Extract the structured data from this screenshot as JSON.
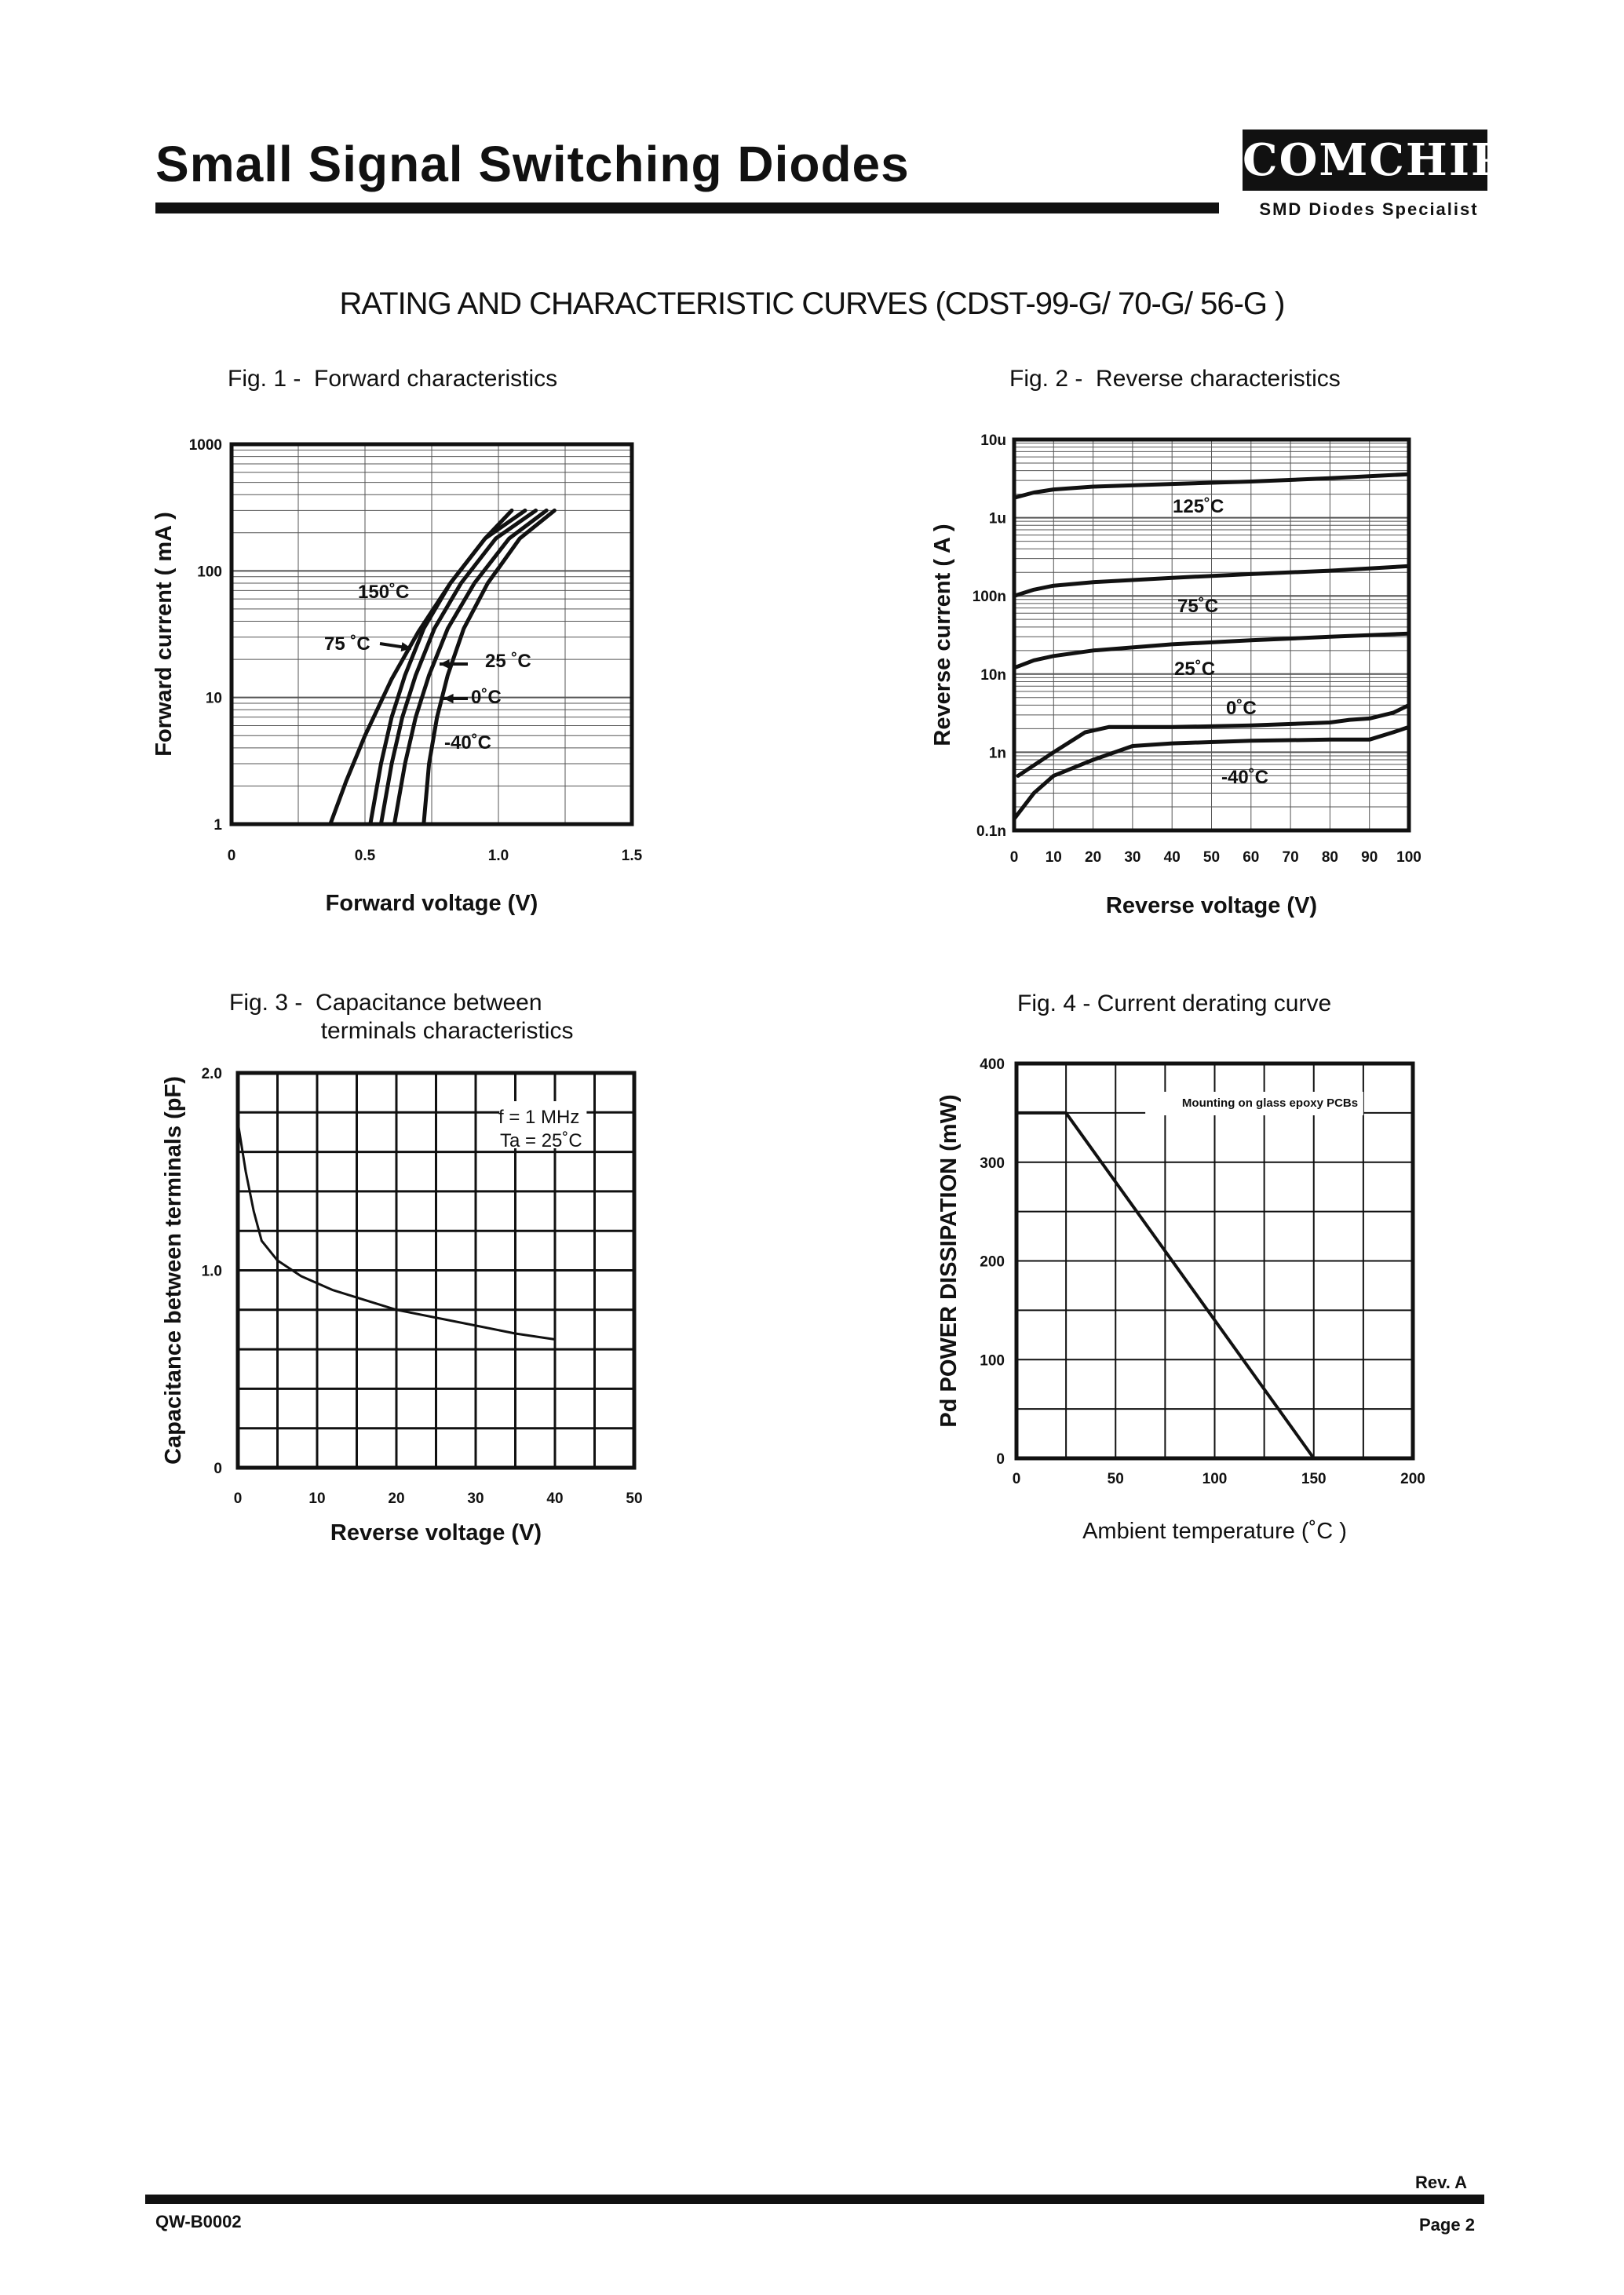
{
  "header": {
    "title": "Small Signal Switching Diodes",
    "logo_text": "COMCHIP",
    "logo_tagline": "SMD Diodes Specialist"
  },
  "section_title": "RATING AND CHARACTERISTIC CURVES (CDST-99-G/ 70-G/ 56-G )",
  "footer": {
    "doc_code": "QW-B0002",
    "revision": "Rev. A",
    "page": "Page 2"
  },
  "chart_data": [
    {
      "id": "fig1",
      "type": "line",
      "title": "Fig. 1 -  Forward characteristics",
      "xlabel": "Forward voltage (V)",
      "ylabel": "Forward current ( mA )",
      "xlim": [
        0,
        1.5
      ],
      "ylim": [
        1,
        1000
      ],
      "y_scale": "log",
      "x_tick_labels": [
        "0",
        "0.5",
        "1.0",
        "1.5"
      ],
      "y_tick_labels": [
        "1",
        "10",
        "100",
        "1000"
      ],
      "series": [
        {
          "name": "150°C",
          "label": "150˚C",
          "x": [
            0.37,
            0.43,
            0.5,
            0.6,
            0.7,
            0.82,
            0.95,
            1.05
          ],
          "y": [
            1,
            2.2,
            5,
            14,
            33,
            80,
            180,
            300
          ]
        },
        {
          "name": "75°C",
          "label": "75 ˚C",
          "x": [
            0.52,
            0.56,
            0.6,
            0.65,
            0.72,
            0.82,
            0.95,
            1.1
          ],
          "y": [
            1,
            3,
            7,
            15,
            35,
            80,
            180,
            300
          ]
        },
        {
          "name": "25°C",
          "label": "25 ˚C",
          "x": [
            0.56,
            0.6,
            0.64,
            0.69,
            0.76,
            0.86,
            0.99,
            1.14
          ],
          "y": [
            1,
            3,
            7,
            15,
            35,
            80,
            180,
            300
          ]
        },
        {
          "name": "0°C",
          "label": "0˚C",
          "x": [
            0.61,
            0.65,
            0.69,
            0.74,
            0.81,
            0.91,
            1.04,
            1.18
          ],
          "y": [
            1,
            3,
            7,
            15,
            35,
            80,
            180,
            300
          ]
        },
        {
          "name": "-40°C",
          "label": "-40˚C",
          "x": [
            0.72,
            0.74,
            0.77,
            0.81,
            0.87,
            0.96,
            1.08,
            1.21
          ],
          "y": [
            1,
            3,
            7,
            15,
            35,
            80,
            180,
            300
          ]
        }
      ]
    },
    {
      "id": "fig2",
      "type": "line",
      "title": "Fig. 2 -  Reverse characteristics",
      "xlabel": "Reverse voltage (V)",
      "ylabel": "Reverse  current ( A )",
      "xlim": [
        0,
        100
      ],
      "ylim": [
        1e-10,
        1e-05
      ],
      "y_scale": "log",
      "x_tick_labels": [
        "0",
        "10",
        "20",
        "30",
        "40",
        "50",
        "60",
        "70",
        "80",
        "90",
        "100"
      ],
      "y_tick_labels": [
        "0.1n",
        "1n",
        "10n",
        "100n",
        "1u",
        "10u"
      ],
      "series": [
        {
          "name": "125°C",
          "label": "125˚C",
          "x": [
            0,
            5,
            10,
            20,
            40,
            60,
            80,
            100
          ],
          "y": [
            1.8e-06,
            2.1e-06,
            2.3e-06,
            2.5e-06,
            2.7e-06,
            2.9e-06,
            3.2e-06,
            3.6e-06
          ]
        },
        {
          "name": "75°C",
          "label": "75˚C",
          "x": [
            0,
            5,
            10,
            20,
            40,
            60,
            80,
            100
          ],
          "y": [
            1e-07,
            1.2e-07,
            1.35e-07,
            1.5e-07,
            1.7e-07,
            1.9e-07,
            2.1e-07,
            2.4e-07
          ]
        },
        {
          "name": "25°C",
          "label": "25˚C",
          "x": [
            0,
            5,
            10,
            20,
            40,
            60,
            80,
            100
          ],
          "y": [
            1.2e-08,
            1.5e-08,
            1.7e-08,
            2e-08,
            2.4e-08,
            2.7e-08,
            3e-08,
            3.3e-08
          ]
        },
        {
          "name": "0°C",
          "label": "0˚C",
          "x": [
            1,
            10,
            18,
            24,
            40,
            60,
            80,
            85,
            90,
            96,
            100
          ],
          "y": [
            5e-10,
            1e-09,
            1.8e-09,
            2.1e-09,
            2.1e-09,
            2.2e-09,
            2.4e-09,
            2.6e-09,
            2.7e-09,
            3.2e-09,
            4e-09
          ]
        },
        {
          "name": "-40°C",
          "label": "-40˚C",
          "x": [
            0,
            5,
            10,
            20,
            30,
            40,
            60,
            80,
            90,
            96,
            100
          ],
          "y": [
            1.4e-10,
            3e-10,
            5e-10,
            8e-10,
            1.2e-09,
            1.3e-09,
            1.4e-09,
            1.45e-09,
            1.45e-09,
            1.8e-09,
            2.1e-09
          ]
        }
      ]
    },
    {
      "id": "fig3",
      "type": "line",
      "title": "Fig. 3 -  Capacitance between\n              terminals characteristics",
      "xlabel": "Reverse voltage (V)",
      "ylabel": "Capacitance between terminals (pF)",
      "xlim": [
        0,
        50
      ],
      "ylim": [
        0,
        2.0
      ],
      "x_tick_labels": [
        "0",
        "10",
        "20",
        "30",
        "40",
        "50"
      ],
      "y_tick_labels": [
        "0",
        "1.0",
        "2.0"
      ],
      "annotations": [
        "f = 1 MHz",
        "Ta = 25˚C"
      ],
      "series": [
        {
          "name": "Ta = 25°C",
          "x": [
            0,
            1,
            2,
            3,
            5,
            8,
            12,
            20,
            30,
            35,
            40
          ],
          "y": [
            1.75,
            1.5,
            1.3,
            1.15,
            1.05,
            0.97,
            0.9,
            0.8,
            0.72,
            0.68,
            0.65
          ]
        }
      ]
    },
    {
      "id": "fig4",
      "type": "line",
      "title": "Fig. 4 - Current derating curve",
      "xlabel": "Ambient temperature (˚C )",
      "ylabel": "Pd POWER DISSIPATION (mW)",
      "xlim": [
        0,
        200
      ],
      "ylim": [
        0,
        400
      ],
      "x_tick_labels": [
        "0",
        "50",
        "100",
        "150",
        "200"
      ],
      "y_tick_labels": [
        "0",
        "100",
        "200",
        "300",
        "400"
      ],
      "annotations": [
        "Mounting on glass epoxy PCBs"
      ],
      "series": [
        {
          "name": "Pd",
          "x": [
            0,
            25,
            150
          ],
          "y": [
            350,
            350,
            0
          ]
        }
      ]
    }
  ]
}
